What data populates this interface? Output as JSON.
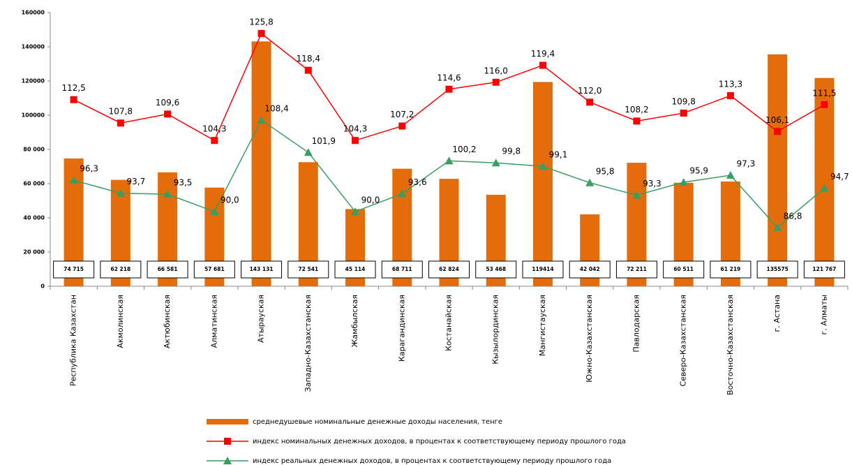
{
  "chart_data": {
    "type": "bar",
    "categories": [
      "Республика Казахстан",
      "Акмолинская",
      "Актюбинская",
      "Алматинская",
      "Атырауская",
      "Западно-Казахстанская",
      "Жамбылская",
      "Карагандинская",
      "Костанайская",
      "Кызылординская",
      "Мангистауская",
      "Южно-Казахстанская",
      "Павлодарская",
      "Северо-Казахстанская",
      "Восточно-Казахстанская",
      "г. Астана",
      "г. Алматы"
    ],
    "series": [
      {
        "name": "среднедушевые номинальные денежные доходы населения, тенге",
        "type": "bar",
        "color": "#e46c0a",
        "values": [
          74715,
          62218,
          66581,
          57681,
          143131,
          72541,
          45114,
          68711,
          62824,
          53468,
          119414,
          42042,
          72211,
          60511,
          61219,
          135575,
          121767
        ],
        "value_labels": [
          "74 715",
          "62 218",
          "66 581",
          "57 681",
          "143 131",
          "72 541",
          "45 114",
          "68 711",
          "62 824",
          "53 468",
          "119414",
          "42 042",
          "72 211",
          "60 511",
          "61 219",
          "135575",
          "121 767"
        ]
      },
      {
        "name": "индекс номинальных денежных доходов, в процентах к соответствующему периоду прошлого года",
        "type": "line",
        "axis": "y2",
        "color": "#ff0000",
        "marker": "square",
        "values": [
          112.5,
          107.8,
          109.6,
          104.3,
          125.8,
          118.4,
          104.3,
          107.2,
          114.6,
          116.0,
          119.4,
          112.0,
          108.2,
          109.8,
          113.3,
          106.1,
          111.5
        ],
        "value_labels": [
          "112,5",
          "107,8",
          "109,6",
          "104,3",
          "125,8",
          "118,4",
          "104,3",
          "107,2",
          "114,6",
          "116,0",
          "119,4",
          "112,0",
          "108,2",
          "109,8",
          "113,3",
          "106,1",
          "111,5"
        ]
      },
      {
        "name": "индекс реальных денежных доходов, в процентах к соответствующему периоду прошлого года",
        "type": "line",
        "axis": "y2",
        "color": "#3a9e63",
        "marker": "triangle",
        "values": [
          96.3,
          93.7,
          93.5,
          90.0,
          108.4,
          101.9,
          90.0,
          93.6,
          100.2,
          99.8,
          99.1,
          95.8,
          93.3,
          95.9,
          97.3,
          86.8,
          94.7
        ],
        "value_labels": [
          "96,3",
          "93,7",
          "93,5",
          "90,0",
          "108,4",
          "101,9",
          "90,0",
          "93,6",
          "100,2",
          "99,8",
          "99,1",
          "95,8",
          "93,3",
          "95,9",
          "97,3",
          "86,8",
          "94,7"
        ]
      }
    ],
    "ylim": [
      0,
      160000
    ],
    "yticks": [
      0,
      {
        "value": 20000,
        "label": "20 000"
      },
      {
        "value": 40000,
        "label": "40 000"
      },
      {
        "value": 60000,
        "label": "60 000"
      },
      {
        "value": 80000,
        "label": "80 000"
      },
      100000,
      120000,
      140000,
      160000
    ],
    "y2lim": [
      75,
      130
    ],
    "grid": false
  }
}
